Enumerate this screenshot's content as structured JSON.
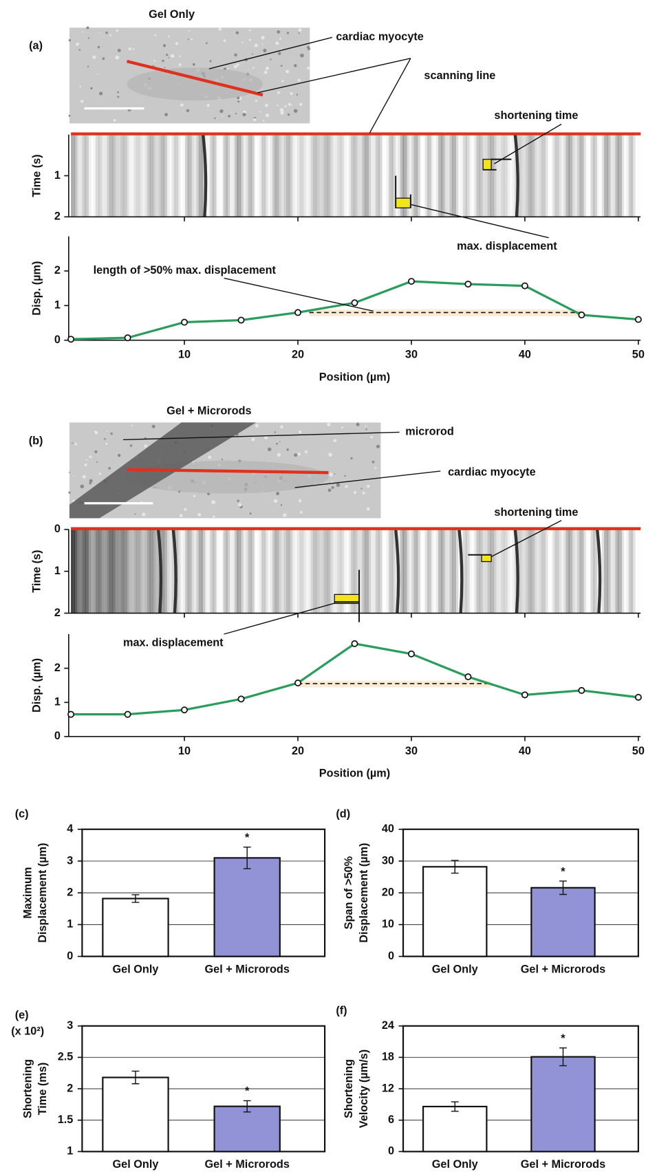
{
  "chart_data": [
    {
      "type": "line",
      "panel": "(a)",
      "image_title": "Gel Only",
      "annotations": [
        "cardiac myocyte",
        "scanning line",
        "shortening time",
        "max. displacement",
        "length of >50% max. displacement"
      ],
      "kymograph": {
        "ylabel": "Time (s)",
        "ylim": [
          0,
          2
        ],
        "yticks": [
          1,
          2
        ]
      },
      "xlabel": "Position (µm)",
      "ylabel": "Disp. (µm)",
      "x": [
        0,
        5,
        10,
        15,
        20,
        25,
        30,
        35,
        40,
        45,
        50
      ],
      "values": [
        0.03,
        0.07,
        0.52,
        0.58,
        0.8,
        1.08,
        1.7,
        1.62,
        1.57,
        0.73,
        0.6
      ],
      "color": "#2a9d5c",
      "xlim": [
        0,
        50
      ],
      "xticks": [
        10,
        20,
        30,
        40,
        50
      ],
      "ylim": [
        0,
        3
      ],
      "yticks": [
        0,
        1,
        2
      ],
      "reference_line": {
        "y": 0.8,
        "x": [
          21,
          45
        ]
      }
    },
    {
      "type": "line",
      "panel": "(b)",
      "image_title": "Gel + Microrods",
      "annotations": [
        "microrod",
        "cardiac myocyte",
        "shortening time",
        "max. displacement"
      ],
      "kymograph": {
        "ylabel": "Time (s)",
        "ylim": [
          0,
          2
        ],
        "yticks": [
          0,
          1,
          2
        ]
      },
      "xlabel": "Position (µm)",
      "ylabel": "Disp. (µm)",
      "x": [
        0,
        5,
        10,
        15,
        20,
        25,
        30,
        35,
        40,
        45,
        50
      ],
      "values": [
        0.65,
        0.65,
        0.78,
        1.1,
        1.57,
        2.72,
        2.42,
        1.75,
        1.22,
        1.35,
        1.15
      ],
      "color": "#2a9d5c",
      "xlim": [
        0,
        50
      ],
      "xticks": [
        10,
        20,
        30,
        40,
        50
      ],
      "ylim": [
        0,
        3
      ],
      "yticks": [
        0,
        1,
        2
      ],
      "reference_line": {
        "y": 1.55,
        "x": [
          20,
          37
        ]
      }
    },
    {
      "type": "bar",
      "panel": "(c)",
      "ylabel": [
        "Maximum",
        "Displacement (µm)"
      ],
      "categories": [
        "Gel Only",
        "Gel + Microrods"
      ],
      "values": [
        1.82,
        3.1
      ],
      "errors": [
        0.12,
        0.34
      ],
      "colors": [
        "#ffffff",
        "#9193d6"
      ],
      "significance": [
        null,
        "*"
      ],
      "ylim": [
        0,
        4
      ],
      "yticks": [
        0,
        1,
        2,
        3,
        4
      ],
      "grid": true
    },
    {
      "type": "bar",
      "panel": "(d)",
      "ylabel": [
        "Span of >50%",
        "Displacement (µm)"
      ],
      "categories": [
        "Gel Only",
        "Gel + Microrods"
      ],
      "values": [
        28.2,
        21.6
      ],
      "errors": [
        2,
        2.1
      ],
      "colors": [
        "#ffffff",
        "#9193d6"
      ],
      "significance": [
        null,
        "*"
      ],
      "ylim": [
        0,
        40
      ],
      "yticks": [
        0,
        10,
        20,
        30,
        40
      ],
      "grid": true
    },
    {
      "type": "bar",
      "panel": "(e)",
      "scale_note": "(x 10²)",
      "ylabel": [
        "Shortening",
        "Time (ms)"
      ],
      "categories": [
        "Gel Only",
        "Gel + Microrods"
      ],
      "values": [
        2.18,
        1.72
      ],
      "errors": [
        0.1,
        0.09
      ],
      "colors": [
        "#ffffff",
        "#9193d6"
      ],
      "significance": [
        null,
        "*"
      ],
      "ylim": [
        1,
        3
      ],
      "yticks": [
        1,
        1.5,
        2,
        2.5,
        3
      ],
      "grid": true
    },
    {
      "type": "bar",
      "panel": "(f)",
      "ylabel": [
        "Shortening",
        "Velocity (µm/s)"
      ],
      "categories": [
        "Gel Only",
        "Gel + Microrods"
      ],
      "values": [
        8.6,
        18.1
      ],
      "errors": [
        0.9,
        1.7
      ],
      "colors": [
        "#ffffff",
        "#9193d6"
      ],
      "significance": [
        null,
        "*"
      ],
      "ylim": [
        0,
        24
      ],
      "yticks": [
        0,
        6,
        12,
        18,
        24
      ],
      "grid": true
    }
  ]
}
